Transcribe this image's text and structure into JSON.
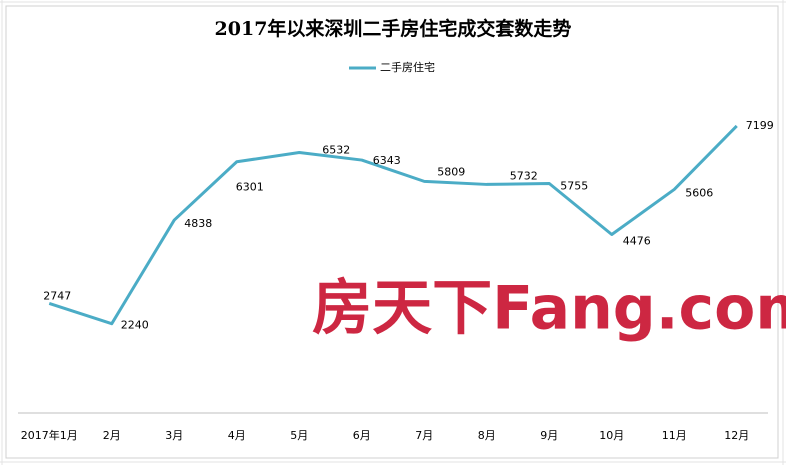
{
  "chart_data": {
    "type": "line",
    "title": "2017年以来深圳二手房住宅成交套数走势",
    "categories": [
      "2017年1月",
      "2月",
      "3月",
      "4月",
      "5月",
      "6月",
      "7月",
      "8月",
      "9月",
      "10月",
      "11月",
      "12月"
    ],
    "series": [
      {
        "name": "二手房住宅",
        "color": "#4bacc6",
        "values": [
          2747,
          2240,
          4838,
          6301,
          6532,
          6343,
          5809,
          5732,
          5755,
          4476,
          5606,
          7199
        ]
      }
    ],
    "ylim": [
      0,
      8000
    ],
    "legend": "top",
    "data_labels": true,
    "watermark": "房天下Fang.com"
  }
}
